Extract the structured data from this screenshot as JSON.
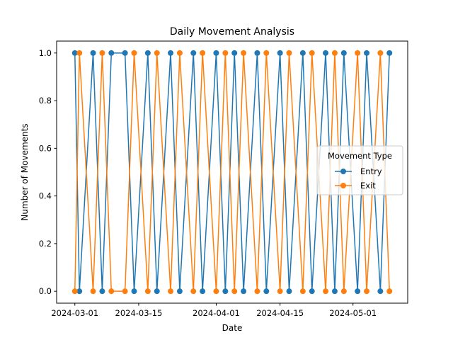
{
  "chart_data": {
    "type": "line",
    "title": "Daily Movement Analysis",
    "xlabel": "Date",
    "ylabel": "Number of Movements",
    "x_tick_labels": [
      "2024-03-01",
      "2024-03-15",
      "2024-04-01",
      "2024-04-15",
      "2024-05-01"
    ],
    "y_tick_labels": [
      "0.0",
      "0.2",
      "0.4",
      "0.6",
      "0.8",
      "1.0"
    ],
    "xlim": [
      "2023-02-26",
      "2024-05-09"
    ],
    "ylim": [
      -0.05,
      1.05
    ],
    "grid": false,
    "legend": {
      "title": "Movement Type",
      "placement": "center-right"
    },
    "series": [
      {
        "name": "Entry",
        "color": "#1f77b4",
        "marker": "circle",
        "points": [
          [
            "2024-03-01",
            1
          ],
          [
            "2024-03-02",
            0
          ],
          [
            "2024-03-05",
            1
          ],
          [
            "2024-03-07",
            0
          ],
          [
            "2024-03-09",
            1
          ],
          [
            "2024-03-12",
            1
          ],
          [
            "2024-03-14",
            0
          ],
          [
            "2024-03-17",
            1
          ],
          [
            "2024-03-19",
            0
          ],
          [
            "2024-03-22",
            1
          ],
          [
            "2024-03-24",
            0
          ],
          [
            "2024-03-27",
            1
          ],
          [
            "2024-03-29",
            0
          ],
          [
            "2024-04-01",
            1
          ],
          [
            "2024-04-03",
            0
          ],
          [
            "2024-04-05",
            1
          ],
          [
            "2024-04-07",
            0
          ],
          [
            "2024-04-10",
            1
          ],
          [
            "2024-04-12",
            0
          ],
          [
            "2024-04-15",
            1
          ],
          [
            "2024-04-17",
            0
          ],
          [
            "2024-04-20",
            1
          ],
          [
            "2024-04-22",
            0
          ],
          [
            "2024-04-25",
            1
          ],
          [
            "2024-04-27",
            0
          ],
          [
            "2024-04-29",
            1
          ],
          [
            "2024-05-02",
            0
          ],
          [
            "2024-05-04",
            1
          ],
          [
            "2024-05-07",
            0
          ],
          [
            "2024-05-09",
            1
          ]
        ]
      },
      {
        "name": "Exit",
        "color": "#ff7f0e",
        "marker": "circle",
        "points": [
          [
            "2024-03-01",
            0
          ],
          [
            "2024-03-02",
            1
          ],
          [
            "2024-03-05",
            0
          ],
          [
            "2024-03-07",
            1
          ],
          [
            "2024-03-09",
            0
          ],
          [
            "2024-03-12",
            0
          ],
          [
            "2024-03-14",
            1
          ],
          [
            "2024-03-17",
            0
          ],
          [
            "2024-03-19",
            1
          ],
          [
            "2024-03-22",
            0
          ],
          [
            "2024-03-24",
            1
          ],
          [
            "2024-03-27",
            0
          ],
          [
            "2024-03-29",
            1
          ],
          [
            "2024-04-01",
            0
          ],
          [
            "2024-04-03",
            1
          ],
          [
            "2024-04-05",
            0
          ],
          [
            "2024-04-07",
            1
          ],
          [
            "2024-04-10",
            0
          ],
          [
            "2024-04-12",
            1
          ],
          [
            "2024-04-15",
            0
          ],
          [
            "2024-04-17",
            1
          ],
          [
            "2024-04-20",
            0
          ],
          [
            "2024-04-22",
            1
          ],
          [
            "2024-04-25",
            0
          ],
          [
            "2024-04-27",
            1
          ],
          [
            "2024-04-29",
            0
          ],
          [
            "2024-05-02",
            1
          ],
          [
            "2024-05-04",
            0
          ],
          [
            "2024-05-07",
            1
          ],
          [
            "2024-05-09",
            0
          ]
        ]
      }
    ]
  }
}
